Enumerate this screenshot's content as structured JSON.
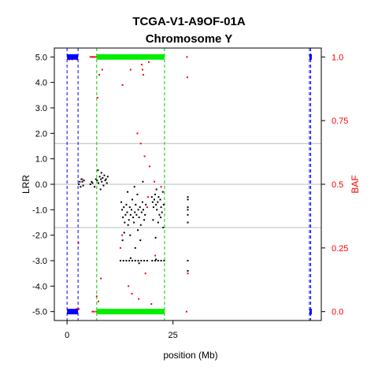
{
  "chart_data": {
    "type": "scatter",
    "title": "TCGA-V1-A9OF-01A",
    "subtitle": "Chromosome Y",
    "xlabel": "position (Mb)",
    "ylabel_left": "LRR",
    "ylabel_right": "BAF",
    "xlim": [
      -3,
      60
    ],
    "ylim_left": [
      -5.35,
      5.35
    ],
    "ylim_right": [
      -0.035,
      1.035
    ],
    "x_ticks": [
      0,
      25
    ],
    "y_ticks_left": [
      5.0,
      4.0,
      3.0,
      2.0,
      1.0,
      0.0,
      -1.0,
      -2.0,
      -3.0,
      -4.0,
      -5.0
    ],
    "y_tick_labels_left": [
      "5.0",
      "4.0",
      "3.0",
      "2.0",
      "1.0",
      "0.0",
      "-1.0",
      "-2.0",
      "-3.0",
      "-4.0",
      "-5.0"
    ],
    "y_ticks_right": [
      1.0,
      0.75,
      0.5,
      0.25,
      0.0
    ],
    "y_tick_labels_right": [
      "1.0",
      "0.75",
      "0.5",
      "0.25",
      "0.0"
    ],
    "reference_lines_lrr": [
      1.6,
      0.0,
      -1.7
    ],
    "colors": {
      "lrr": "#000000",
      "baf": "#ff0000",
      "segment_green": "#00ee00",
      "segment_blue": "#0000ff",
      "boundary_green": "#00cc00",
      "boundary_blue": "#0000ff",
      "refline": "#bbbbbb"
    },
    "segments": [
      {
        "color": "blue",
        "x_start": 0.0,
        "x_end": 2.6
      },
      {
        "color": "green",
        "x_start": 7.0,
        "x_end": 23.0
      },
      {
        "color": "blue",
        "x_start": 57.2,
        "x_end": 57.5
      }
    ],
    "boundaries": [
      {
        "x": 0.0,
        "color": "blue"
      },
      {
        "x": 2.6,
        "color": "blue"
      },
      {
        "x": 7.0,
        "color": "green"
      },
      {
        "x": 23.0,
        "color": "green"
      },
      {
        "x": 57.2,
        "color": "blue"
      },
      {
        "x": 57.5,
        "color": "blue"
      }
    ],
    "series": [
      {
        "name": "LRR",
        "axis": "left",
        "points": [
          [
            2.8,
            0.0
          ],
          [
            3.0,
            0.1
          ],
          [
            3.2,
            -0.1
          ],
          [
            3.4,
            0.2
          ],
          [
            3.6,
            0.1
          ],
          [
            3.8,
            -0.05
          ],
          [
            4.0,
            0.15
          ],
          [
            5.5,
            0.0
          ],
          [
            5.8,
            0.1
          ],
          [
            6.0,
            0.05
          ],
          [
            6.5,
            -0.1
          ],
          [
            6.8,
            0.2
          ],
          [
            7.1,
            0.15
          ],
          [
            7.4,
            0.05
          ],
          [
            7.7,
            0.3
          ],
          [
            8.0,
            0.2
          ],
          [
            8.2,
            0.1
          ],
          [
            8.4,
            0.25
          ],
          [
            8.6,
            -0.05
          ],
          [
            8.8,
            0.35
          ],
          [
            9.0,
            0.15
          ],
          [
            9.2,
            0.2
          ],
          [
            9.4,
            0.05
          ],
          [
            9.6,
            0.3
          ],
          [
            7.3,
            0.55
          ],
          [
            8.1,
            0.45
          ],
          [
            7.9,
            -0.2
          ],
          [
            12.8,
            -0.7
          ],
          [
            13.0,
            -1.0
          ],
          [
            13.2,
            -1.3
          ],
          [
            13.4,
            -0.9
          ],
          [
            13.6,
            -1.5
          ],
          [
            13.8,
            -1.2
          ],
          [
            14.0,
            -0.8
          ],
          [
            14.2,
            -1.1
          ],
          [
            14.4,
            -1.6
          ],
          [
            14.6,
            -1.4
          ],
          [
            14.8,
            -0.9
          ],
          [
            15.0,
            -1.2
          ],
          [
            15.2,
            -1.0
          ],
          [
            15.4,
            -0.6
          ],
          [
            15.6,
            -1.3
          ],
          [
            15.8,
            -1.5
          ],
          [
            16.0,
            -1.1
          ],
          [
            16.2,
            -0.8
          ],
          [
            16.4,
            -1.2
          ],
          [
            16.6,
            -0.4
          ],
          [
            16.8,
            -1.0
          ],
          [
            17.0,
            -1.3
          ],
          [
            17.2,
            -0.9
          ],
          [
            17.4,
            -1.6
          ],
          [
            17.6,
            -1.1
          ],
          [
            17.8,
            -0.7
          ],
          [
            18.0,
            -1.0
          ],
          [
            18.2,
            -1.4
          ],
          [
            18.4,
            -1.2
          ],
          [
            18.6,
            -0.8
          ],
          [
            13.1,
            -2.2
          ],
          [
            14.9,
            -2.0
          ],
          [
            16.1,
            -2.5
          ],
          [
            17.3,
            -2.2
          ],
          [
            14.3,
            -0.3
          ],
          [
            15.9,
            -0.1
          ],
          [
            17.9,
            0.1
          ],
          [
            16.7,
            -1.8
          ],
          [
            13.5,
            -1.9
          ],
          [
            20.0,
            -0.5
          ],
          [
            20.2,
            -0.7
          ],
          [
            20.4,
            -0.9
          ],
          [
            20.6,
            -0.6
          ],
          [
            20.8,
            -0.4
          ],
          [
            21.0,
            -0.8
          ],
          [
            21.2,
            -1.0
          ],
          [
            21.4,
            -0.7
          ],
          [
            21.6,
            -0.5
          ],
          [
            21.8,
            -1.2
          ],
          [
            22.0,
            -0.6
          ],
          [
            22.2,
            -0.9
          ],
          [
            22.4,
            -1.1
          ],
          [
            22.6,
            -0.3
          ],
          [
            22.8,
            -0.8
          ],
          [
            20.3,
            -1.4
          ],
          [
            21.5,
            -1.5
          ],
          [
            22.1,
            -1.3
          ],
          [
            20.9,
            -2.1
          ],
          [
            22.7,
            -1.7
          ],
          [
            21.1,
            -0.2
          ],
          [
            12.6,
            -3.0
          ],
          [
            13.3,
            -3.0
          ],
          [
            14.0,
            -3.0
          ],
          [
            14.7,
            -3.0
          ],
          [
            15.4,
            -3.0
          ],
          [
            16.1,
            -3.0
          ],
          [
            16.8,
            -3.0
          ],
          [
            17.5,
            -3.0
          ],
          [
            18.2,
            -3.0
          ],
          [
            18.9,
            -3.0
          ],
          [
            20.1,
            -3.0
          ],
          [
            20.8,
            -3.0
          ],
          [
            21.5,
            -3.0
          ],
          [
            22.2,
            -3.0
          ],
          [
            22.9,
            -3.0
          ],
          [
            15.0,
            -2.9
          ],
          [
            17.0,
            -3.1
          ],
          [
            21.0,
            -2.95
          ],
          [
            28.5,
            -0.6
          ],
          [
            28.5,
            -0.9
          ],
          [
            28.5,
            -1.2
          ],
          [
            28.5,
            -1.5
          ],
          [
            28.5,
            -3.0
          ],
          [
            28.5,
            -3.4
          ],
          [
            28.5,
            -0.5
          ],
          [
            28.5,
            -1.0
          ]
        ]
      },
      {
        "name": "BAF",
        "axis": "right",
        "points": [
          [
            0.5,
            0.99
          ],
          [
            1.2,
            0.99
          ],
          [
            2.2,
            0.01
          ],
          [
            2.4,
            0.99
          ],
          [
            2.6,
            0.01
          ],
          [
            2.7,
            0.27
          ],
          [
            2.8,
            0.01
          ],
          [
            3.6,
            0.52
          ],
          [
            5.5,
            1.0
          ],
          [
            5.9,
            1.0
          ],
          [
            6.2,
            1.0
          ],
          [
            6.6,
            1.0
          ],
          [
            7.0,
            1.0
          ],
          [
            7.3,
            1.0
          ],
          [
            7.6,
            1.0
          ],
          [
            7.9,
            1.0
          ],
          [
            8.2,
            1.0
          ],
          [
            8.5,
            1.0
          ],
          [
            8.8,
            1.0
          ],
          [
            9.1,
            1.0
          ],
          [
            9.4,
            1.0
          ],
          [
            6.0,
            0.0
          ],
          [
            6.4,
            0.0
          ],
          [
            6.9,
            0.0
          ],
          [
            7.2,
            0.0
          ],
          [
            7.6,
            0.0
          ],
          [
            8.0,
            0.0
          ],
          [
            8.4,
            0.0
          ],
          [
            8.8,
            0.0
          ],
          [
            9.2,
            0.0
          ],
          [
            7.0,
            0.06
          ],
          [
            7.4,
            0.04
          ],
          [
            8.0,
            0.13
          ],
          [
            7.6,
            0.93
          ],
          [
            8.3,
            0.95
          ],
          [
            7.2,
            0.84
          ],
          [
            12.0,
            1.0
          ],
          [
            12.5,
            1.0
          ],
          [
            13.0,
            1.0
          ],
          [
            13.5,
            1.0
          ],
          [
            14.0,
            1.0
          ],
          [
            14.5,
            1.0
          ],
          [
            15.0,
            1.0
          ],
          [
            15.5,
            1.0
          ],
          [
            16.0,
            1.0
          ],
          [
            16.5,
            1.0
          ],
          [
            17.0,
            1.0
          ],
          [
            17.5,
            1.0
          ],
          [
            18.0,
            1.0
          ],
          [
            18.5,
            1.0
          ],
          [
            19.0,
            1.0
          ],
          [
            20.0,
            1.0
          ],
          [
            21.0,
            1.0
          ],
          [
            21.8,
            1.0
          ],
          [
            22.5,
            1.0
          ],
          [
            12.2,
            0.0
          ],
          [
            12.8,
            0.0
          ],
          [
            13.4,
            0.0
          ],
          [
            14.0,
            0.0
          ],
          [
            14.6,
            0.0
          ],
          [
            15.2,
            0.0
          ],
          [
            15.8,
            0.0
          ],
          [
            16.4,
            0.0
          ],
          [
            17.0,
            0.0
          ],
          [
            17.6,
            0.0
          ],
          [
            18.2,
            0.0
          ],
          [
            18.8,
            0.0
          ],
          [
            19.5,
            0.0
          ],
          [
            20.3,
            0.0
          ],
          [
            21.2,
            0.0
          ],
          [
            22.0,
            0.0
          ],
          [
            22.8,
            0.0
          ],
          [
            17.6,
            0.97
          ],
          [
            17.8,
            0.95
          ],
          [
            18.0,
            0.93
          ],
          [
            15.0,
            0.95
          ],
          [
            19.3,
            0.98
          ],
          [
            13.1,
            0.89
          ],
          [
            16.6,
            0.7
          ],
          [
            17.4,
            0.66
          ],
          [
            18.3,
            0.61
          ],
          [
            19.5,
            0.57
          ],
          [
            18.9,
            0.41
          ],
          [
            19.1,
            0.45
          ],
          [
            20.6,
            0.51
          ],
          [
            22.2,
            0.49
          ],
          [
            13.0,
            0.3
          ],
          [
            18.5,
            0.15
          ],
          [
            15.3,
            0.07
          ],
          [
            16.9,
            0.05
          ],
          [
            14.5,
            0.1
          ],
          [
            20.8,
            0.22
          ],
          [
            19.9,
            0.03
          ],
          [
            12.6,
            0.25
          ],
          [
            28.3,
            1.0
          ],
          [
            28.4,
            0.92
          ],
          [
            28.2,
            0.0
          ],
          [
            28.5,
            0.15
          ]
        ]
      }
    ]
  }
}
